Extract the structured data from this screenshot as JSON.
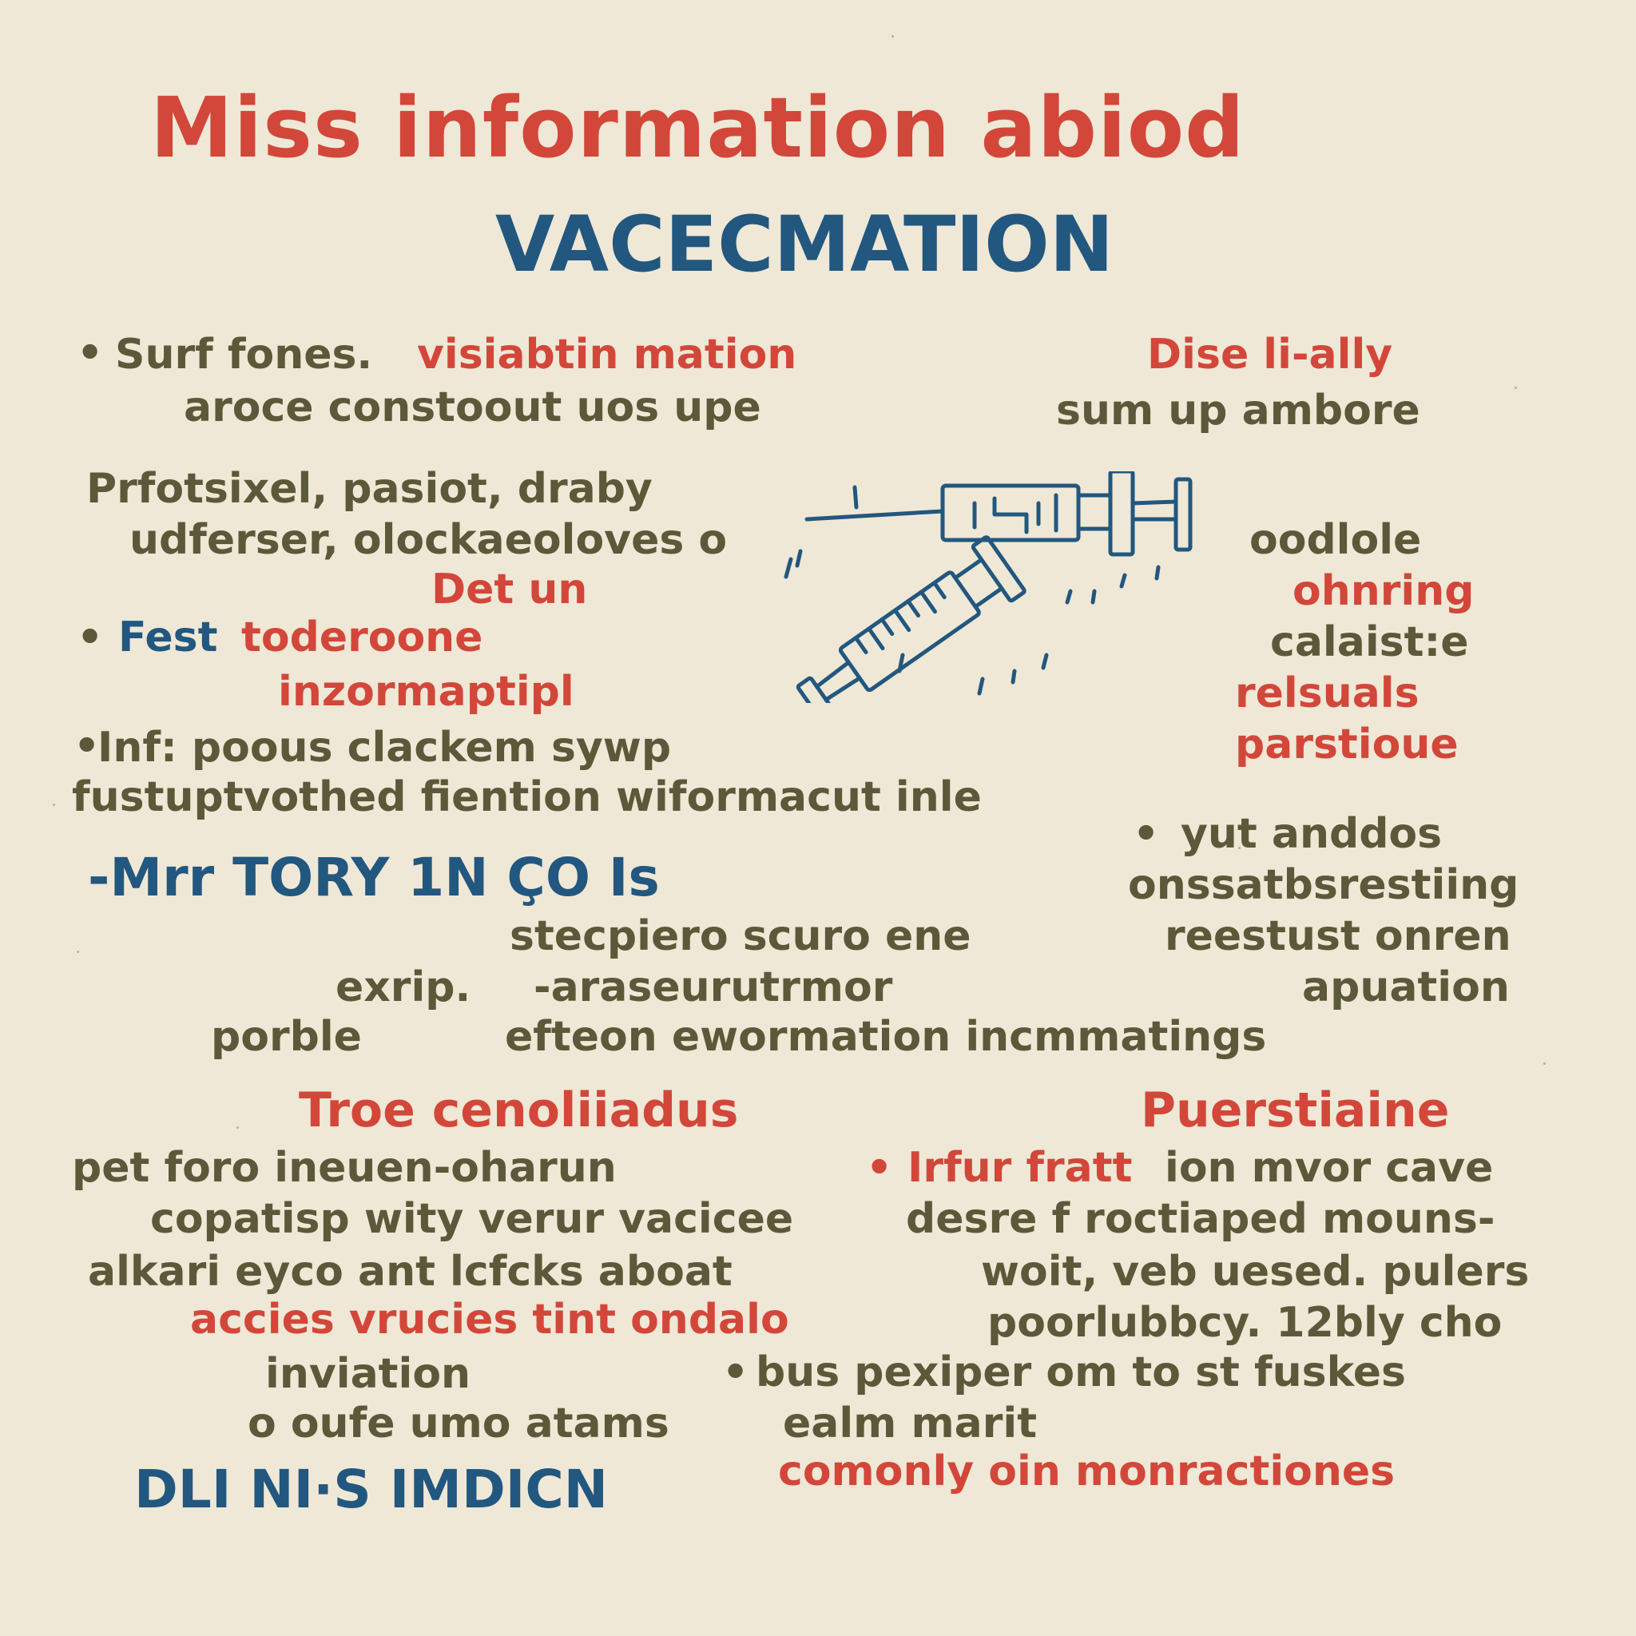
{
  "title": "Miss information abiod",
  "subtitle": "VACECMATION",
  "colors": {
    "background": "#efe8d6",
    "olive": "#5b5939",
    "red": "#d2473a",
    "blue": "#22577f"
  },
  "left": {
    "b1_olive": "Surf fones.",
    "b1_red": "visiabtin mation",
    "b1_line2": "aroce constoout uos upe",
    "p1": "Prfotsixel, pasiot, draby",
    "p2": "udferser, olockaeoloves o",
    "p3": "Det un",
    "b2_blue": "Fest",
    "b2_red": "toderoone",
    "b2_line2": "inzormaptipl",
    "b3": "Inf: poous clackem sywp",
    "b3_line2": "fustuptvothed fiention wiformacut inle",
    "heading_blue": "Mrr TORY 1N ÇO Is"
  },
  "right": {
    "head_red": "Dise li-ally",
    "line1": "sum up ambore",
    "w1": "oodlole",
    "w2": "ohnring",
    "w3": "calaist:e",
    "w4": "relsuals",
    "w5": "parstioue",
    "b1": "yut anddos",
    "b1_line2": "onssatbsrestiing",
    "b1_line3": "reestust onren",
    "b1_line4": "apuation"
  },
  "middle": {
    "m1": "stecpiero scuro ene",
    "m2a": "exrip.",
    "m2b": "-araseurutrmor",
    "m3a": "porble",
    "m3b": "efteon ewormation incmmatings"
  },
  "lower_left": {
    "head": "Troe cenoliiadus",
    "l1": "pet foro ineuen-oharun",
    "l2": "copatisp wity verur vacicee",
    "l3": "alkari eyco ant lcfcks aboat",
    "l4": "accies vrucies tint ondalo",
    "l5": "inviation",
    "l6": "o oufe umo atams",
    "l7": "DLI NI·S IMDICN"
  },
  "lower_right": {
    "head": "Puerstiaine",
    "b1_red": "Irfur fratt",
    "b1_olive": "ion mvor cave",
    "l2": "desre f roctiaped mouns-",
    "l3": "woit, veb uesed. pulers",
    "l4": "poorlubbcy. 12bly cho",
    "b2": "bus pexiper om to st fuskes",
    "l6": "ealm marit",
    "l7": "comonly oin monractiones"
  },
  "icons": {
    "syringe": "syringe-icon",
    "bullet": "bullet-dot"
  }
}
